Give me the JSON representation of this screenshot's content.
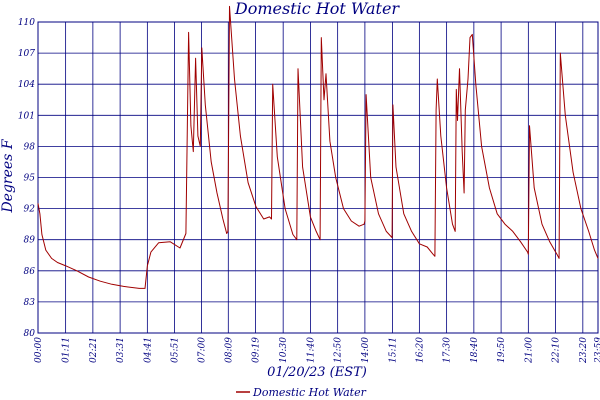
{
  "chart_data": {
    "type": "line",
    "title": "Domestic Hot Water",
    "ylabel": "Degrees F",
    "xlabel": "01/20/23 (EST)",
    "ylim": [
      80,
      110
    ],
    "yticks": [
      80,
      83,
      86,
      89,
      92,
      95,
      98,
      101,
      104,
      107,
      110
    ],
    "xlim": [
      "00:00",
      "23:59"
    ],
    "xticks": [
      "00:00",
      "01:11",
      "02:21",
      "03:31",
      "04:41",
      "05:51",
      "07:00",
      "08:09",
      "09:19",
      "10:30",
      "11:40",
      "12:50",
      "14:00",
      "15:11",
      "16:20",
      "17:30",
      "18:40",
      "19:50",
      "21:00",
      "22:10",
      "23:20",
      "23:59"
    ],
    "grid": true,
    "legend_position": "bottom-center",
    "series": [
      {
        "name": "Domestic Hot Water",
        "color": "#a00000",
        "points": [
          [
            "00:00",
            92.5
          ],
          [
            "00:05",
            91.5
          ],
          [
            "00:10",
            89.5
          ],
          [
            "00:20",
            88.0
          ],
          [
            "00:35",
            87.2
          ],
          [
            "00:50",
            86.8
          ],
          [
            "01:10",
            86.5
          ],
          [
            "01:40",
            86.0
          ],
          [
            "02:10",
            85.4
          ],
          [
            "02:40",
            85.0
          ],
          [
            "03:10",
            84.7
          ],
          [
            "03:40",
            84.5
          ],
          [
            "04:20",
            84.3
          ],
          [
            "04:35",
            84.3
          ],
          [
            "04:41",
            86.5
          ],
          [
            "04:50",
            87.8
          ],
          [
            "05:10",
            88.7
          ],
          [
            "05:40",
            88.8
          ],
          [
            "06:05",
            88.2
          ],
          [
            "06:20",
            89.6
          ],
          [
            "06:27",
            109.0
          ],
          [
            "06:33",
            100.0
          ],
          [
            "06:39",
            97.5
          ],
          [
            "06:45",
            106.5
          ],
          [
            "06:51",
            99.0
          ],
          [
            "06:57",
            98.0
          ],
          [
            "07:01",
            107.5
          ],
          [
            "07:10",
            102.0
          ],
          [
            "07:25",
            96.5
          ],
          [
            "07:40",
            93.5
          ],
          [
            "07:55",
            91.0
          ],
          [
            "08:05",
            89.6
          ],
          [
            "08:08",
            89.8
          ],
          [
            "08:12",
            111.5
          ],
          [
            "08:25",
            104.5
          ],
          [
            "08:40",
            99.0
          ],
          [
            "09:00",
            94.5
          ],
          [
            "09:20",
            92.2
          ],
          [
            "09:40",
            91.0
          ],
          [
            "09:55",
            91.2
          ],
          [
            "10:00",
            91.0
          ],
          [
            "10:03",
            104.0
          ],
          [
            "10:15",
            97.0
          ],
          [
            "10:35",
            92.0
          ],
          [
            "10:55",
            89.5
          ],
          [
            "11:05",
            89.0
          ],
          [
            "11:08",
            105.5
          ],
          [
            "11:20",
            96.0
          ],
          [
            "11:40",
            91.2
          ],
          [
            "11:55",
            89.8
          ],
          [
            "12:05",
            89.0
          ],
          [
            "12:08",
            108.5
          ],
          [
            "12:15",
            102.5
          ],
          [
            "12:20",
            105.0
          ],
          [
            "12:30",
            98.5
          ],
          [
            "12:45",
            95.0
          ],
          [
            "13:05",
            92.0
          ],
          [
            "13:25",
            90.8
          ],
          [
            "13:45",
            90.3
          ],
          [
            "13:58",
            90.5
          ],
          [
            "14:00",
            90.8
          ],
          [
            "14:03",
            103.0
          ],
          [
            "14:15",
            95.0
          ],
          [
            "14:35",
            91.5
          ],
          [
            "14:55",
            89.8
          ],
          [
            "15:10",
            89.2
          ],
          [
            "15:12",
            102.0
          ],
          [
            "15:20",
            96.0
          ],
          [
            "15:40",
            91.5
          ],
          [
            "16:00",
            89.8
          ],
          [
            "16:20",
            88.6
          ],
          [
            "16:40",
            88.3
          ],
          [
            "16:55",
            87.6
          ],
          [
            "17:00",
            87.4
          ],
          [
            "17:03",
            101.5
          ],
          [
            "17:06",
            104.5
          ],
          [
            "17:15",
            99.0
          ],
          [
            "17:30",
            94.0
          ],
          [
            "17:45",
            90.5
          ],
          [
            "17:52",
            89.8
          ],
          [
            "17:55",
            103.5
          ],
          [
            "17:58",
            100.5
          ],
          [
            "18:03",
            105.5
          ],
          [
            "18:10",
            97.5
          ],
          [
            "18:15",
            93.5
          ],
          [
            "18:18",
            101.5
          ],
          [
            "18:25",
            104.5
          ],
          [
            "18:30",
            108.5
          ],
          [
            "18:36",
            108.8
          ],
          [
            "18:45",
            104.0
          ],
          [
            "19:00",
            98.0
          ],
          [
            "19:20",
            94.0
          ],
          [
            "19:40",
            91.5
          ],
          [
            "20:00",
            90.5
          ],
          [
            "20:20",
            89.8
          ],
          [
            "20:40",
            88.8
          ],
          [
            "20:58",
            87.8
          ],
          [
            "21:00",
            87.6
          ],
          [
            "21:03",
            100.0
          ],
          [
            "21:15",
            94.0
          ],
          [
            "21:35",
            90.5
          ],
          [
            "21:55",
            88.8
          ],
          [
            "22:15",
            87.5
          ],
          [
            "22:19",
            87.2
          ],
          [
            "22:22",
            107.0
          ],
          [
            "22:35",
            101.0
          ],
          [
            "22:55",
            95.5
          ],
          [
            "23:15",
            92.0
          ],
          [
            "23:35",
            89.8
          ],
          [
            "23:50",
            88.0
          ],
          [
            "23:59",
            87.2
          ]
        ]
      }
    ]
  }
}
